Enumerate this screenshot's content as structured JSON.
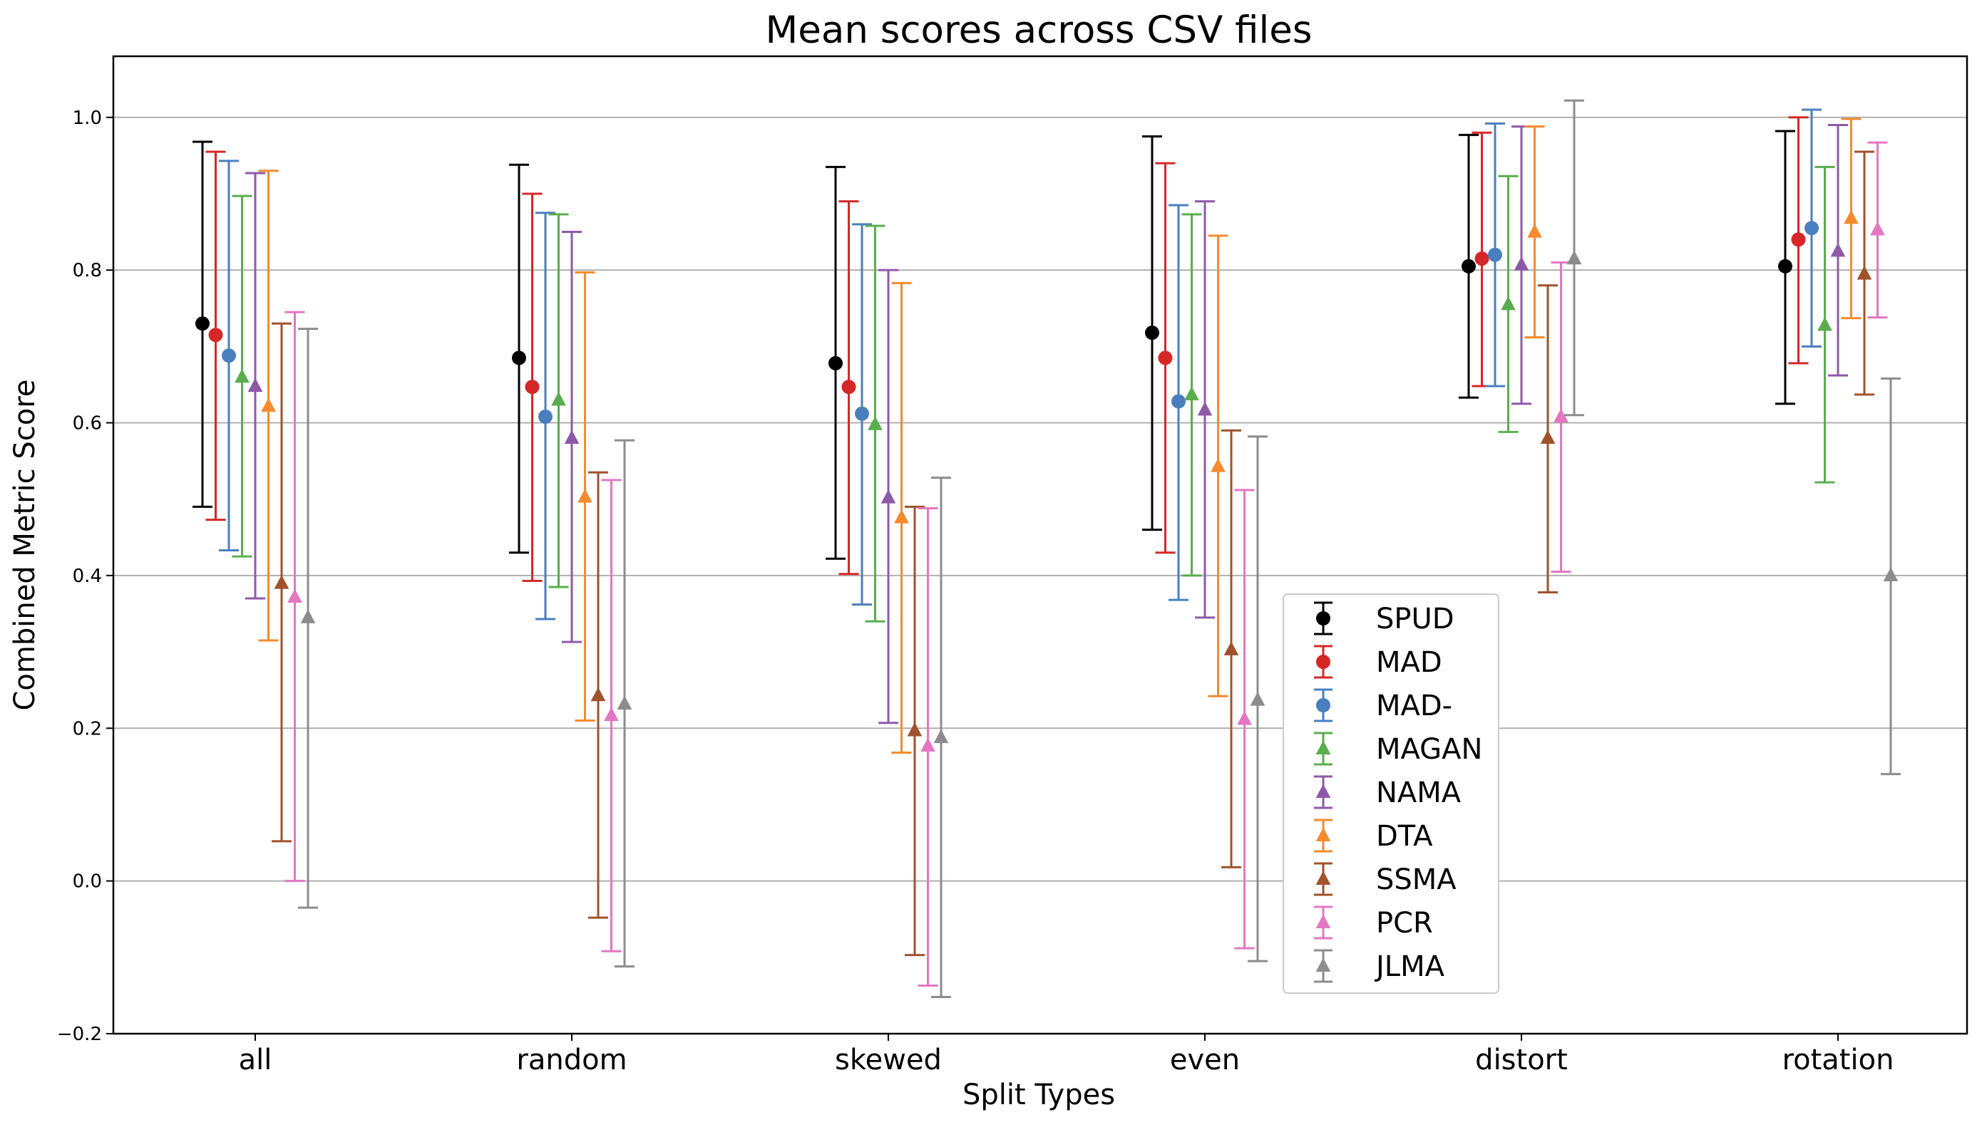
{
  "chart_data": {
    "type": "errorbar",
    "title": "Mean scores across CSV files",
    "xlabel": "Split Types",
    "ylabel": "Combined Metric Score",
    "categories": [
      "all",
      "random",
      "skewed",
      "even",
      "distort",
      "rotation"
    ],
    "ylim": [
      -0.2,
      1.08
    ],
    "yticks": [
      -0.2,
      0.0,
      0.2,
      0.4,
      0.6,
      0.8,
      1.0
    ],
    "ytick_labels": [
      "−0.2",
      "0.0",
      "0.2",
      "0.4",
      "0.6",
      "0.8",
      "1.0"
    ],
    "grid": "horizontal",
    "legend_position": "lower-right-center",
    "series": [
      {
        "name": "SPUD",
        "color": "#000000",
        "marker": "circle",
        "mean": [
          0.73,
          0.685,
          0.678,
          0.718,
          0.805,
          0.805
        ],
        "lower": [
          0.49,
          0.43,
          0.422,
          0.46,
          0.633,
          0.625
        ],
        "upper": [
          0.968,
          0.938,
          0.935,
          0.975,
          0.977,
          0.982
        ]
      },
      {
        "name": "MAD",
        "color": "#d62728",
        "marker": "circle",
        "mean": [
          0.715,
          0.647,
          0.647,
          0.685,
          0.815,
          0.84
        ],
        "lower": [
          0.473,
          0.393,
          0.402,
          0.43,
          0.648,
          0.678
        ],
        "upper": [
          0.955,
          0.9,
          0.89,
          0.94,
          0.98,
          1.0
        ]
      },
      {
        "name": "MAD-",
        "color": "#4a7fbf",
        "marker": "circle",
        "mean": [
          0.688,
          0.608,
          0.612,
          0.628,
          0.82,
          0.855
        ],
        "lower": [
          0.433,
          0.343,
          0.362,
          0.368,
          0.648,
          0.7
        ],
        "upper": [
          0.943,
          0.875,
          0.86,
          0.885,
          0.992,
          1.01
        ]
      },
      {
        "name": "MAGAN",
        "color": "#5aad4e",
        "marker": "triangle",
        "mean": [
          0.66,
          0.63,
          0.598,
          0.637,
          0.755,
          0.728
        ],
        "lower": [
          0.425,
          0.385,
          0.34,
          0.4,
          0.588,
          0.522
        ],
        "upper": [
          0.897,
          0.873,
          0.858,
          0.873,
          0.923,
          0.935
        ]
      },
      {
        "name": "NAMA",
        "color": "#8e5aa8",
        "marker": "triangle",
        "mean": [
          0.648,
          0.58,
          0.502,
          0.617,
          0.807,
          0.825
        ],
        "lower": [
          0.37,
          0.313,
          0.207,
          0.345,
          0.625,
          0.662
        ],
        "upper": [
          0.927,
          0.85,
          0.8,
          0.89,
          0.988,
          0.99
        ]
      },
      {
        "name": "DTA",
        "color": "#f58b2e",
        "marker": "triangle",
        "mean": [
          0.622,
          0.503,
          0.476,
          0.543,
          0.85,
          0.868
        ],
        "lower": [
          0.315,
          0.21,
          0.168,
          0.242,
          0.712,
          0.737
        ],
        "upper": [
          0.93,
          0.797,
          0.783,
          0.845,
          0.988,
          0.998
        ]
      },
      {
        "name": "SSMA",
        "color": "#a0522d",
        "marker": "triangle",
        "mean": [
          0.39,
          0.243,
          0.197,
          0.303,
          0.58,
          0.795
        ],
        "lower": [
          0.052,
          -0.048,
          -0.097,
          0.018,
          0.378,
          0.637
        ],
        "upper": [
          0.73,
          0.535,
          0.49,
          0.59,
          0.78,
          0.955
        ]
      },
      {
        "name": "PCR",
        "color": "#e377c2",
        "marker": "triangle",
        "mean": [
          0.372,
          0.217,
          0.177,
          0.212,
          0.608,
          0.853
        ],
        "lower": [
          0.0,
          -0.092,
          -0.137,
          -0.088,
          0.405,
          0.738
        ],
        "upper": [
          0.745,
          0.525,
          0.488,
          0.512,
          0.81,
          0.967
        ]
      },
      {
        "name": "JLMA",
        "color": "#8c8c8c",
        "marker": "triangle",
        "mean": [
          0.345,
          0.232,
          0.188,
          0.237,
          0.815,
          0.4
        ],
        "lower": [
          -0.035,
          -0.112,
          -0.152,
          -0.105,
          0.61,
          0.14
        ],
        "upper": [
          0.723,
          0.577,
          0.528,
          0.582,
          1.022,
          0.658
        ]
      }
    ]
  }
}
